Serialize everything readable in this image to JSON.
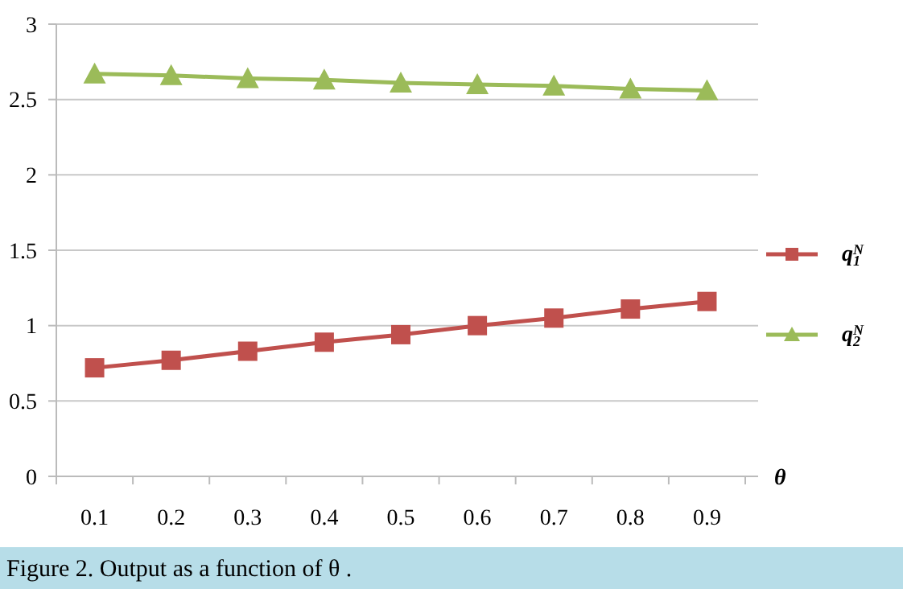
{
  "chart_data": {
    "type": "line",
    "categories": [
      "0.1",
      "0.2",
      "0.3",
      "0.4",
      "0.5",
      "0.6",
      "0.7",
      "0.8",
      "0.9"
    ],
    "series": [
      {
        "name": "q$_{1}$$^{N}$",
        "color": "#c0504d",
        "marker": "square",
        "values": [
          0.72,
          0.77,
          0.83,
          0.89,
          0.94,
          1.0,
          1.05,
          1.11,
          1.16
        ]
      },
      {
        "name": "q$_{2}$$^{N}$",
        "color": "#9bbb59",
        "marker": "triangle",
        "values": [
          2.67,
          2.66,
          2.64,
          2.63,
          2.61,
          2.6,
          2.59,
          2.57,
          2.56
        ]
      }
    ],
    "xlabel": "θ",
    "ylim": [
      0,
      3
    ],
    "yticks": [
      0,
      0.5,
      1,
      1.5,
      2,
      2.5,
      3
    ],
    "grid": "y",
    "legend": "right",
    "annotations": [
      "Figure 2. Output as a function of  θ ."
    ]
  }
}
